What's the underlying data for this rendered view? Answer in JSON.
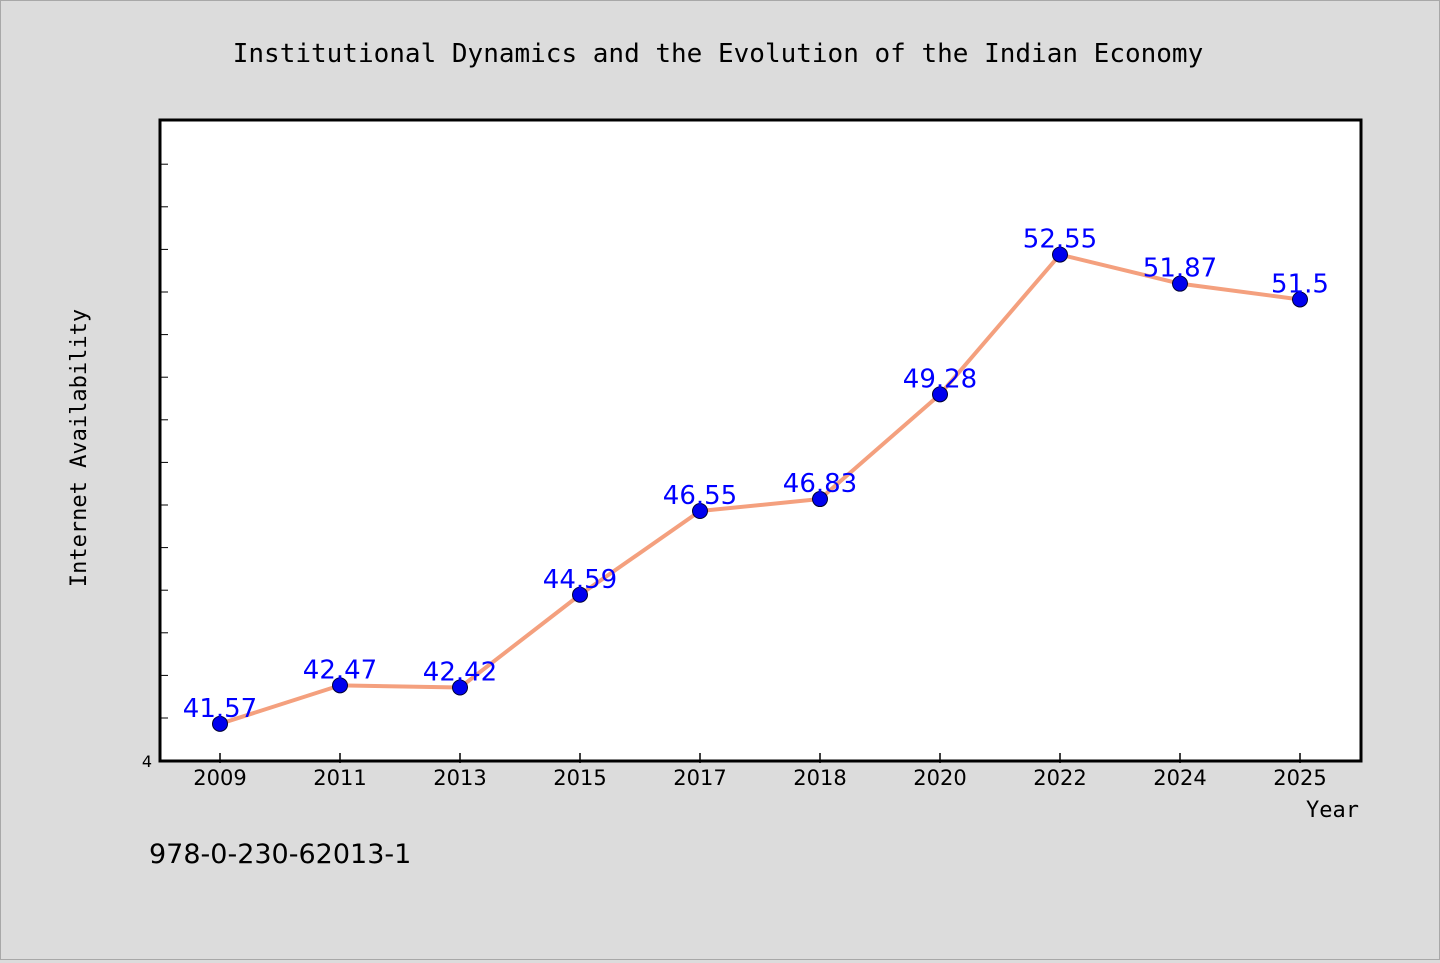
{
  "chart_data": {
    "type": "line",
    "title": "Institutional Dynamics and the Evolution of the Indian Economy",
    "xlabel": "Year",
    "ylabel": "Internet Availability",
    "categories": [
      "2009",
      "2011",
      "2013",
      "2015",
      "2017",
      "2018",
      "2020",
      "2022",
      "2024",
      "2025"
    ],
    "series": [
      {
        "values": [
          41.57,
          42.47,
          42.42,
          44.59,
          46.55,
          46.83,
          49.28,
          52.55,
          51.87,
          51.5
        ],
        "data_labels": [
          "41.57",
          "42.47",
          "42.42",
          "44.59",
          "46.55",
          "46.83",
          "49.28",
          "52.55",
          "51.87",
          "51.5"
        ]
      }
    ],
    "ylim": [
      40.7,
      55.7
    ],
    "y_tick_label": "4",
    "grid": false,
    "legend": "none",
    "colors": {
      "line": "#f4a07e",
      "marker": "#0000ee",
      "data_label": "#0000ff",
      "plot_bg": "#ffffff",
      "page_bg": "#dcdcdc"
    }
  },
  "footer_text": "978-0-230-62013-1"
}
